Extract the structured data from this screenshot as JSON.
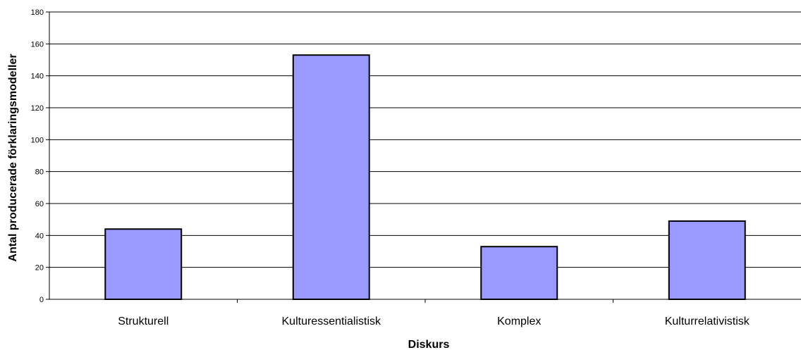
{
  "chart_data": {
    "type": "bar",
    "categories": [
      "Strukturell",
      "Kulturessentialistisk",
      "Komplex",
      "Kulturrelativistisk"
    ],
    "values": [
      44,
      153,
      33,
      49
    ],
    "xlabel": "Diskurs",
    "ylabel": "Antal producerade förklaringsmodeller",
    "ylim": [
      0,
      180
    ],
    "yticks": [
      0,
      20,
      40,
      60,
      80,
      100,
      120,
      140,
      160,
      180
    ],
    "grid": true,
    "legend": "none",
    "colors": {
      "bar": "#9999ff",
      "bar_border": "#000000",
      "grid": "#000000"
    }
  }
}
